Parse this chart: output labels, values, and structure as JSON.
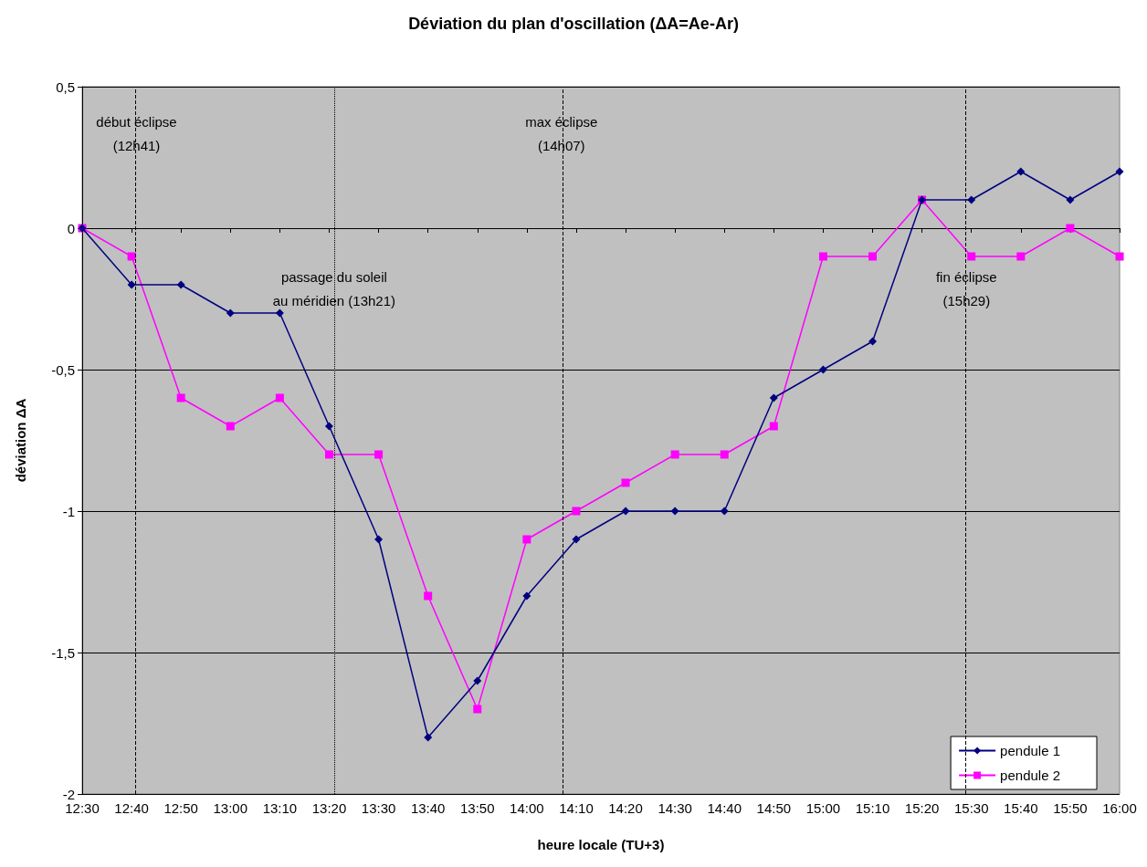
{
  "chart_data": {
    "type": "line",
    "title": "Déviation du plan d'oscillation (ΔA=Ae-Ar)",
    "xlabel": "heure locale (TU+3)",
    "ylabel": "déviation ΔA",
    "x": [
      12.5,
      12.6667,
      12.8333,
      13,
      13.1667,
      13.3333,
      13.5,
      13.6667,
      13.8333,
      14,
      14.1667,
      14.3333,
      14.5,
      14.6667,
      14.8333,
      15,
      15.1667,
      15.3333,
      15.5,
      15.6667,
      15.8333,
      16
    ],
    "series": [
      {
        "name": "pendule 1",
        "color": "#000080",
        "marker": "diamond",
        "values": [
          0,
          -0.2,
          -0.2,
          -0.3,
          -0.3,
          -0.7,
          -1.1,
          -1.8,
          -1.6,
          -1.3,
          -1.1,
          -1.0,
          -1.0,
          -1.0,
          -0.6,
          -0.5,
          -0.4,
          0.1,
          0.1,
          0.2,
          0.1,
          0.2
        ]
      },
      {
        "name": "pendule 2",
        "color": "#ff00ff",
        "marker": "square",
        "values": [
          0,
          -0.1,
          -0.6,
          -0.7,
          -0.6,
          -0.8,
          -0.8,
          -1.3,
          -1.7,
          -1.1,
          -1.0,
          -0.9,
          -0.8,
          -0.8,
          -0.7,
          -0.1,
          -0.1,
          0.1,
          -0.1,
          -0.1,
          0,
          -0.1
        ]
      }
    ],
    "xlim": [
      12.5,
      16
    ],
    "xticks": [
      {
        "value": 12.5,
        "label": "12:30"
      },
      {
        "value": 12.6667,
        "label": "12:40"
      },
      {
        "value": 12.8333,
        "label": "12:50"
      },
      {
        "value": 13,
        "label": "13:00"
      },
      {
        "value": 13.1667,
        "label": "13:10"
      },
      {
        "value": 13.3333,
        "label": "13:20"
      },
      {
        "value": 13.5,
        "label": "13:30"
      },
      {
        "value": 13.6667,
        "label": "13:40"
      },
      {
        "value": 13.8333,
        "label": "13:50"
      },
      {
        "value": 14,
        "label": "14:00"
      },
      {
        "value": 14.1667,
        "label": "14:10"
      },
      {
        "value": 14.3333,
        "label": "14:20"
      },
      {
        "value": 14.5,
        "label": "14:30"
      },
      {
        "value": 14.6667,
        "label": "14:40"
      },
      {
        "value": 14.8333,
        "label": "14:50"
      },
      {
        "value": 15,
        "label": "15:00"
      },
      {
        "value": 15.1667,
        "label": "15:10"
      },
      {
        "value": 15.3333,
        "label": "15:20"
      },
      {
        "value": 15.5,
        "label": "15:30"
      },
      {
        "value": 15.6667,
        "label": "15:40"
      },
      {
        "value": 15.8333,
        "label": "15:50"
      },
      {
        "value": 16,
        "label": "16:00"
      }
    ],
    "ylim": [
      -2,
      0.5
    ],
    "yticks": [
      {
        "value": -2,
        "label": "-2"
      },
      {
        "value": -1.5,
        "label": "-1,5"
      },
      {
        "value": -1,
        "label": "-1"
      },
      {
        "value": -0.5,
        "label": "-0,5"
      },
      {
        "value": 0,
        "label": "0"
      },
      {
        "value": 0.5,
        "label": "0,5"
      }
    ],
    "ref_lines": [
      {
        "axis": "x",
        "value": 12.6833,
        "label": "début éclipse\n(12h41)",
        "line_style": "dashed",
        "color": "#000000"
      },
      {
        "axis": "x",
        "value": 13.35,
        "label": "passage du soleil\nau méridien (13h21)",
        "line_style": "dotted",
        "color": "#000000"
      },
      {
        "axis": "x",
        "value": 14.1167,
        "label": "max éclipse\n(14h07)",
        "line_style": "dashed",
        "color": "#000000"
      },
      {
        "axis": "x",
        "value": 15.4833,
        "label": "fin éclipse\n(15h29)",
        "line_style": "dashed",
        "color": "#000000"
      }
    ],
    "grid": "y",
    "legend": "bottom right",
    "line_style": "solid"
  }
}
